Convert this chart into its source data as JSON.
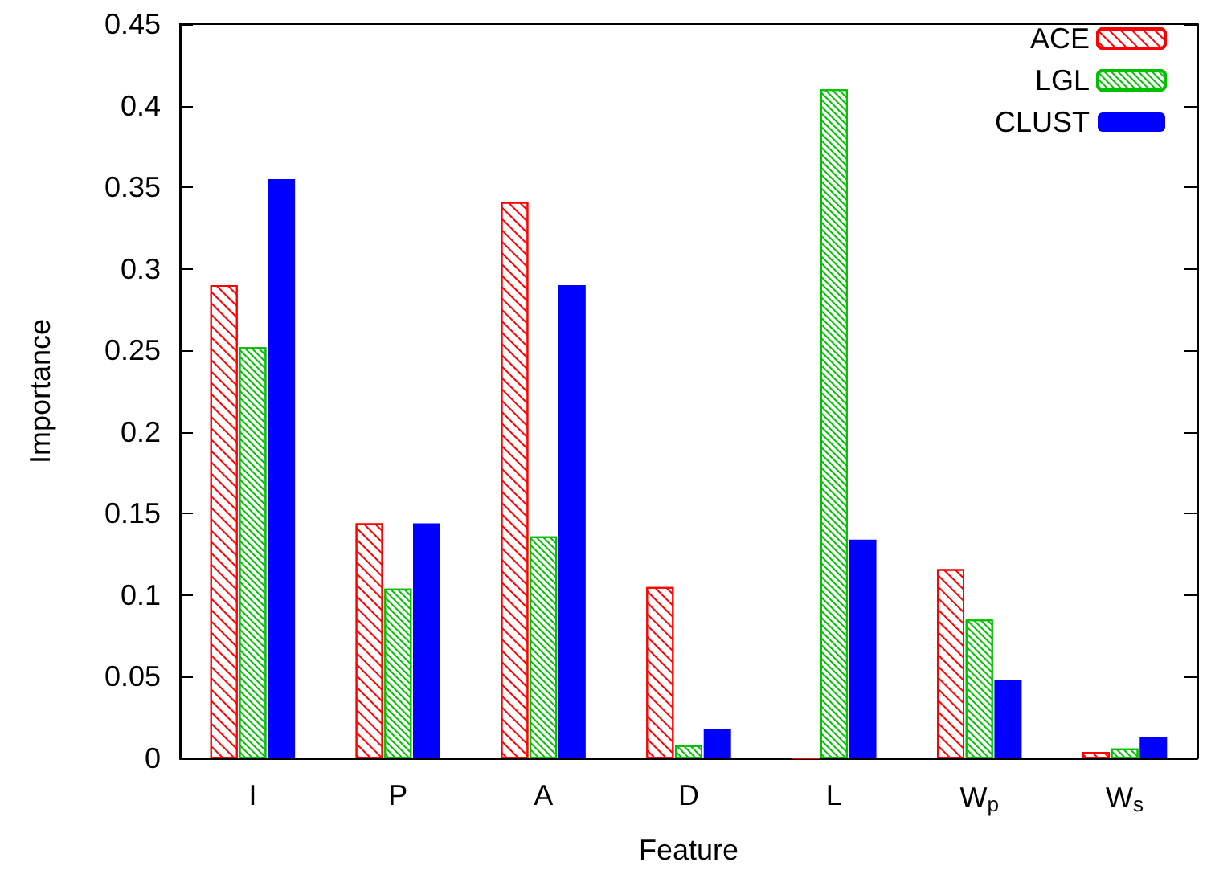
{
  "chart_data": {
    "type": "bar",
    "xlabel": "Feature",
    "ylabel": "Importance",
    "categories": [
      "I",
      "P",
      "A",
      "D",
      "L",
      "W$_{p}$",
      "W$_{s}$"
    ],
    "series": [
      {
        "name": "ACE",
        "color": "#ff0000",
        "values": [
          0.29,
          0.144,
          0.341,
          0.105,
          0,
          0.116,
          0.004
        ]
      },
      {
        "name": "LGL",
        "color": "#00c000",
        "values": [
          0.252,
          0.104,
          0.136,
          0.008,
          0.41,
          0.085,
          0.006
        ]
      },
      {
        "name": "CLUST",
        "color": "#0000ff",
        "values": [
          0.355,
          0.144,
          0.29,
          0.018,
          0.134,
          0.048,
          0.013
        ]
      }
    ],
    "ylim": [
      0,
      0.45
    ],
    "yticks": [
      0,
      0.05,
      0.1,
      0.15,
      0.2,
      0.25,
      0.3,
      0.35,
      0.4,
      0.45
    ],
    "grid": false,
    "legend": "top right"
  }
}
